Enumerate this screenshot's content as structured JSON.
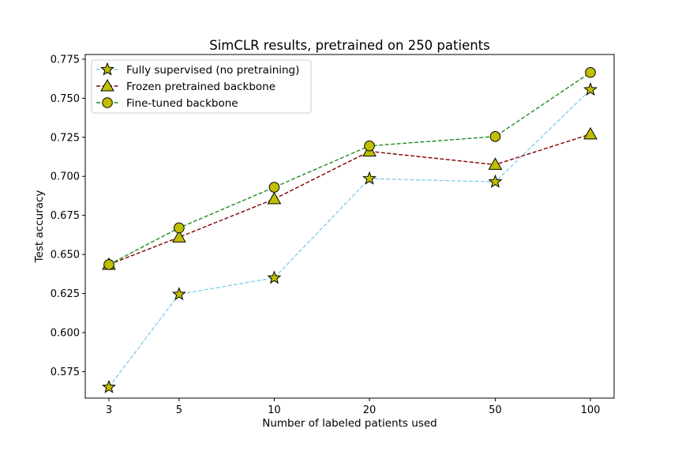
{
  "chart_data": {
    "type": "line",
    "title": "SimCLR results, pretrained on 250 patients",
    "xlabel": "Number of labeled patients used",
    "ylabel": "Test accuracy",
    "x_scale": "log",
    "x": [
      3,
      5,
      10,
      20,
      50,
      100
    ],
    "x_tick_labels": [
      "3",
      "5",
      "10",
      "20",
      "50",
      "100"
    ],
    "ylim": [
      0.558,
      0.778
    ],
    "y_ticks": [
      0.575,
      0.6,
      0.625,
      0.65,
      0.675,
      0.7,
      0.725,
      0.75,
      0.775
    ],
    "y_tick_labels": [
      "0.575",
      "0.600",
      "0.625",
      "0.650",
      "0.675",
      "0.700",
      "0.725",
      "0.750",
      "0.775"
    ],
    "grid": false,
    "legend_position": "top-left",
    "series": [
      {
        "name": "Fully supervised (no pretraining)",
        "values": [
          0.565,
          0.6245,
          0.635,
          0.6985,
          0.6965,
          0.7555
        ],
        "line_color": "#87ceeb",
        "marker": "star",
        "marker_fill": "#bfbf00"
      },
      {
        "name": "Frozen pretrained backbone",
        "values": [
          0.6435,
          0.661,
          0.6855,
          0.716,
          0.7075,
          0.727
        ],
        "line_color": "#800000",
        "marker": "triangle",
        "marker_fill": "#bfbf00"
      },
      {
        "name": "Fine-tuned backbone",
        "values": [
          0.6435,
          0.667,
          0.693,
          0.7195,
          0.7255,
          0.7665
        ],
        "line_color": "#228b22",
        "marker": "circle",
        "marker_fill": "#bfbf00"
      }
    ]
  }
}
